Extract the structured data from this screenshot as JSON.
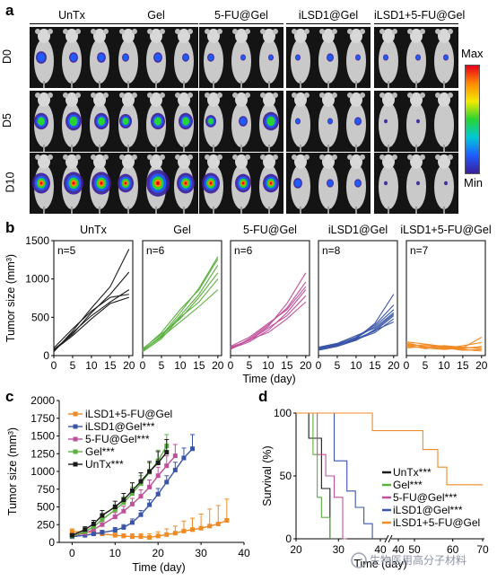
{
  "panel_a": {
    "letter": "a",
    "groups": [
      "UnTx",
      "Gel",
      "5-FU@Gel",
      "iLSD1@Gel",
      "iLSD1+5-FU@Gel"
    ],
    "days": [
      "D0",
      "D5",
      "D10"
    ],
    "scale_max": "Max",
    "scale_min": "Min",
    "scale_colors": [
      "#e8001c",
      "#ff8a00",
      "#f3ea00",
      "#27d431",
      "#00c8d8",
      "#1f5cff",
      "#3a1e9a"
    ]
  },
  "panel_b": {
    "letter": "b",
    "ylabel": "Tumor size (mm³)",
    "xlabel": "Time (day)",
    "x_ticks": [
      "0",
      "5",
      "10",
      "15",
      "20"
    ],
    "y_ticks": [
      "0",
      "500",
      "1000",
      "1500"
    ],
    "color_frame": "#000000"
  },
  "panel_c": {
    "letter": "c",
    "ylabel": "Tumor size (mm³)",
    "xlabel": "Time (day)",
    "x_ticks": [
      "0",
      "10",
      "20",
      "30",
      "40"
    ],
    "y_ticks": [
      "0",
      "250",
      "500",
      "750",
      "1000",
      "1250",
      "1500",
      "1750",
      "2000"
    ],
    "legend": [
      "iLSD1+5-FU@Gel",
      "iLSD1@Gel***",
      "5-FU@Gel***",
      "Gel***",
      "UnTx***"
    ]
  },
  "panel_d": {
    "letter": "d",
    "ylabel": "Survival (%)",
    "xlabel": "Time (day)",
    "x_ticks": [
      "20",
      "30",
      "40",
      "40",
      "50",
      "60",
      "70"
    ],
    "y_ticks": [
      "0",
      "50",
      "100"
    ],
    "legend": [
      "UnTx***",
      "Gel***",
      "5-FU@Gel***",
      "iLSD1@Gel***",
      "iLSD1+5-FU@Gel"
    ],
    "watermark": "生物医用高分子材料"
  },
  "chart_data": [
    {
      "type": "line",
      "panel": "b",
      "xlabel": "Time (day)",
      "ylabel": "Tumor size (mm³)",
      "xlim": [
        0,
        21
      ],
      "ylim": [
        0,
        1500
      ],
      "series": [
        {
          "name": "UnTx",
          "label": "n=5",
          "color": "#1a1a1a",
          "x": [
            0,
            5,
            10,
            15,
            20
          ],
          "curves": [
            [
              50,
              320,
              620,
              900,
              1390
            ],
            [
              80,
              280,
              560,
              800,
              1090
            ],
            [
              60,
              300,
              520,
              700,
              860
            ],
            [
              100,
              350,
              580,
              760,
              800
            ],
            [
              70,
              260,
              480,
              680,
              760
            ]
          ]
        },
        {
          "name": "Gel",
          "label": "n=6",
          "color": "#5cb040",
          "x": [
            0,
            5,
            10,
            15,
            20
          ],
          "curves": [
            [
              60,
              260,
              560,
              880,
              1290
            ],
            [
              80,
              300,
              600,
              860,
              1260
            ],
            [
              70,
              250,
              520,
              800,
              1180
            ],
            [
              90,
              280,
              480,
              760,
              1080
            ],
            [
              50,
              220,
              500,
              700,
              1000
            ],
            [
              70,
              240,
              440,
              640,
              860
            ]
          ]
        },
        {
          "name": "5-FU@Gel",
          "label": "n=6",
          "color": "#c0509a",
          "x": [
            0,
            5,
            10,
            15,
            20
          ],
          "curves": [
            [
              100,
              200,
              380,
              680,
              1080
            ],
            [
              80,
              220,
              400,
              620,
              960
            ],
            [
              120,
              240,
              420,
              600,
              900
            ],
            [
              90,
              180,
              330,
              560,
              860
            ],
            [
              110,
              200,
              360,
              520,
              780
            ],
            [
              80,
              210,
              300,
              480,
              700
            ]
          ]
        },
        {
          "name": "iLSD1@Gel",
          "label": "n=8",
          "color": "#3a55a8",
          "x": [
            0,
            5,
            10,
            15,
            20
          ],
          "curves": [
            [
              80,
              140,
              220,
              420,
              800
            ],
            [
              100,
              150,
              240,
              400,
              660
            ],
            [
              90,
              130,
              230,
              380,
              600
            ],
            [
              110,
              160,
              260,
              360,
              560
            ],
            [
              70,
              120,
              200,
              340,
              540
            ],
            [
              100,
              140,
              220,
              320,
              520
            ],
            [
              90,
              120,
              210,
              300,
              480
            ],
            [
              80,
              150,
              200,
              330,
              440
            ]
          ]
        },
        {
          "name": "iLSD1+5-FU@Gel",
          "label": "n=7",
          "color": "#f08a24",
          "x": [
            0,
            5,
            10,
            15,
            20
          ],
          "curves": [
            [
              180,
              150,
              120,
              100,
              240
            ],
            [
              150,
              120,
              90,
              130,
              170
            ],
            [
              130,
              140,
              110,
              90,
              120
            ],
            [
              170,
              110,
              130,
              110,
              90
            ],
            [
              120,
              100,
              80,
              100,
              110
            ],
            [
              100,
              120,
              100,
              70,
              80
            ],
            [
              140,
              90,
              110,
              80,
              60
            ]
          ]
        }
      ]
    },
    {
      "type": "line",
      "panel": "c",
      "xlabel": "Time (day)",
      "ylabel": "Tumor size (mm³)",
      "xlim": [
        -3,
        40
      ],
      "ylim": [
        0,
        2000
      ],
      "series": [
        {
          "name": "iLSD1+5-FU@Gel",
          "color": "#f08a24",
          "marker": "square",
          "x": [
            0,
            3,
            5,
            7,
            10,
            12,
            14,
            16,
            18,
            20,
            22,
            24,
            26,
            28,
            30,
            32,
            34,
            36
          ],
          "y": [
            150,
            150,
            140,
            120,
            100,
            90,
            80,
            80,
            70,
            90,
            110,
            130,
            160,
            180,
            200,
            230,
            260,
            310
          ],
          "err": [
            40,
            40,
            40,
            40,
            30,
            30,
            40,
            40,
            50,
            60,
            80,
            100,
            140,
            160,
            200,
            240,
            260,
            300
          ]
        },
        {
          "name": "iLSD1@Gel***",
          "color": "#3a55a8",
          "marker": "square",
          "x": [
            0,
            3,
            5,
            7,
            10,
            12,
            14,
            16,
            18,
            20,
            22,
            24,
            26,
            28
          ],
          "y": [
            80,
            100,
            120,
            140,
            170,
            210,
            280,
            390,
            530,
            680,
            850,
            1020,
            1190,
            1320
          ],
          "err": [
            20,
            20,
            30,
            30,
            40,
            40,
            50,
            60,
            70,
            80,
            90,
            110,
            140,
            200
          ]
        },
        {
          "name": "5-FU@Gel***",
          "color": "#c0509a",
          "marker": "square",
          "x": [
            0,
            3,
            5,
            7,
            10,
            12,
            14,
            16,
            18,
            20,
            22,
            24
          ],
          "y": [
            90,
            130,
            180,
            250,
            360,
            440,
            540,
            650,
            780,
            940,
            1080,
            1220
          ],
          "err": [
            20,
            30,
            40,
            50,
            60,
            70,
            80,
            90,
            100,
            120,
            140,
            160
          ]
        },
        {
          "name": "Gel***",
          "color": "#5cb040",
          "marker": "square",
          "x": [
            0,
            3,
            5,
            7,
            10,
            12,
            14,
            16,
            18,
            20,
            22
          ],
          "y": [
            90,
            150,
            220,
            320,
            460,
            560,
            690,
            830,
            990,
            1150,
            1360
          ],
          "err": [
            20,
            30,
            40,
            60,
            70,
            80,
            90,
            110,
            130,
            150,
            160
          ]
        },
        {
          "name": "UnTx***",
          "color": "#1a1a1a",
          "marker": "square",
          "x": [
            0,
            3,
            5,
            7,
            10,
            12,
            14,
            16,
            18,
            20,
            22
          ],
          "y": [
            100,
            180,
            260,
            380,
            500,
            600,
            730,
            860,
            1000,
            1120,
            1270
          ],
          "err": [
            20,
            40,
            50,
            70,
            80,
            90,
            110,
            120,
            140,
            160,
            180
          ]
        }
      ]
    },
    {
      "type": "line",
      "panel": "d",
      "xlabel": "Time (day)",
      "ylabel": "Survival (%)",
      "ylim": [
        0,
        100
      ],
      "series": [
        {
          "name": "UnTx***",
          "color": "#1a1a1a",
          "steps": [
            [
              20,
              100
            ],
            [
              23,
              100
            ],
            [
              23,
              80
            ],
            [
              26,
              80
            ],
            [
              26,
              40
            ],
            [
              28,
              40
            ],
            [
              28,
              0
            ],
            [
              30,
              0
            ]
          ]
        },
        {
          "name": "Gel***",
          "color": "#5cb040",
          "steps": [
            [
              20,
              100
            ],
            [
              24,
              100
            ],
            [
              24,
              67
            ],
            [
              25,
              67
            ],
            [
              25,
              33
            ],
            [
              26,
              33
            ],
            [
              26,
              17
            ],
            [
              28,
              17
            ],
            [
              28,
              0
            ]
          ]
        },
        {
          "name": "5-FU@Gel***",
          "color": "#c0509a",
          "steps": [
            [
              20,
              100
            ],
            [
              25,
              100
            ],
            [
              25,
              67
            ],
            [
              27,
              67
            ],
            [
              27,
              50
            ],
            [
              29,
              50
            ],
            [
              29,
              33
            ],
            [
              31,
              33
            ],
            [
              31,
              0
            ],
            [
              32,
              0
            ]
          ]
        },
        {
          "name": "iLSD1@Gel***",
          "color": "#3a55a8",
          "steps": [
            [
              20,
              100
            ],
            [
              29,
              100
            ],
            [
              29,
              62
            ],
            [
              32,
              62
            ],
            [
              32,
              38
            ],
            [
              34,
              38
            ],
            [
              34,
              25
            ],
            [
              36,
              25
            ],
            [
              36,
              12
            ],
            [
              38,
              12
            ],
            [
              38,
              0
            ]
          ]
        },
        {
          "name": "iLSD1+5-FU@Gel",
          "color": "#f08a24",
          "steps": [
            [
              20,
              100
            ],
            [
              38,
              100
            ],
            [
              38,
              86
            ],
            [
              40,
              86
            ],
            [
              50,
              86
            ],
            [
              50,
              71
            ],
            [
              55,
              71
            ],
            [
              55,
              57
            ],
            [
              58,
              57
            ],
            [
              58,
              43
            ],
            [
              70,
              43
            ]
          ]
        }
      ]
    }
  ]
}
